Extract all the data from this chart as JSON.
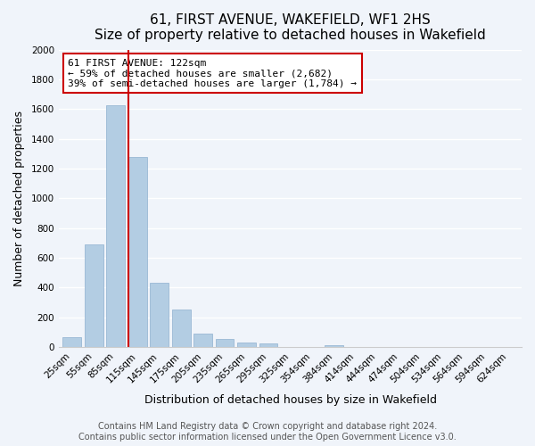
{
  "title": "61, FIRST AVENUE, WAKEFIELD, WF1 2HS",
  "subtitle": "Size of property relative to detached houses in Wakefield",
  "xlabel": "Distribution of detached houses by size in Wakefield",
  "ylabel": "Number of detached properties",
  "bar_labels": [
    "25sqm",
    "55sqm",
    "85sqm",
    "115sqm",
    "145sqm",
    "175sqm",
    "205sqm",
    "235sqm",
    "265sqm",
    "295sqm",
    "325sqm",
    "354sqm",
    "384sqm",
    "414sqm",
    "444sqm",
    "474sqm",
    "504sqm",
    "534sqm",
    "564sqm",
    "594sqm",
    "624sqm"
  ],
  "bar_values": [
    65,
    690,
    1625,
    1275,
    430,
    250,
    88,
    52,
    30,
    22,
    0,
    0,
    15,
    0,
    0,
    0,
    0,
    0,
    0,
    0,
    0
  ],
  "bar_color": "#b3cde3",
  "bar_edge_color": "#9ab8d4",
  "vline_color": "#cc0000",
  "vline_x_index": 2.575,
  "annotation_text": "61 FIRST AVENUE: 122sqm\n← 59% of detached houses are smaller (2,682)\n39% of semi-detached houses are larger (1,784) →",
  "annotation_box_color": "#ffffff",
  "annotation_box_edge": "#cc0000",
  "ylim": [
    0,
    2000
  ],
  "yticks": [
    0,
    200,
    400,
    600,
    800,
    1000,
    1200,
    1400,
    1600,
    1800,
    2000
  ],
  "footer1": "Contains HM Land Registry data © Crown copyright and database right 2024.",
  "footer2": "Contains public sector information licensed under the Open Government Licence v3.0.",
  "background_color": "#f0f4fa",
  "plot_background": "#f0f4fa",
  "grid_color": "#ffffff",
  "title_fontsize": 11,
  "axis_label_fontsize": 9,
  "tick_fontsize": 7.5,
  "footer_fontsize": 7
}
